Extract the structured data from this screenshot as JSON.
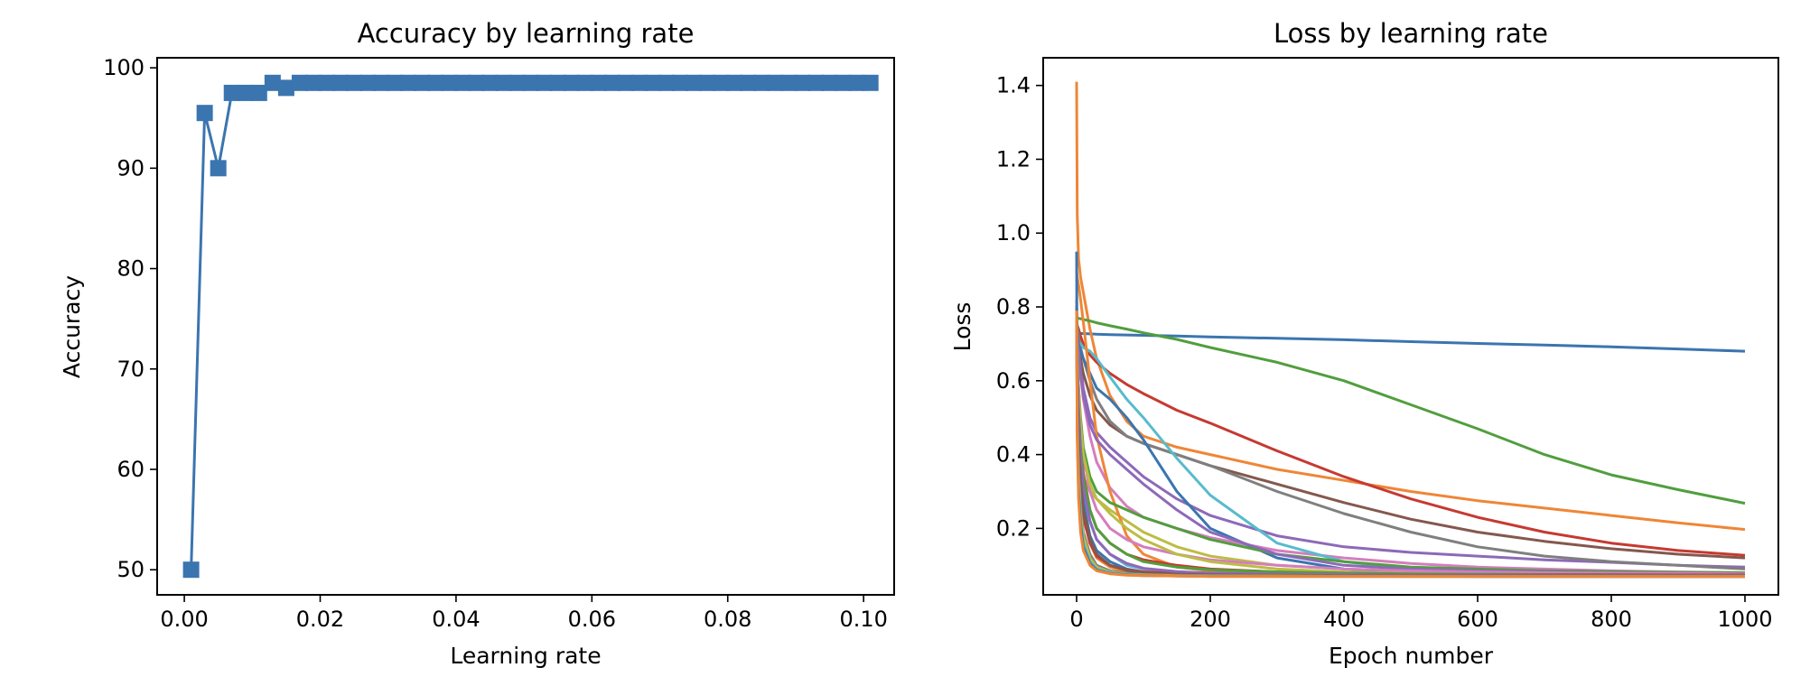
{
  "chart_data": [
    {
      "type": "line",
      "title": "Accuracy by learning rate",
      "xlabel": "Learning rate",
      "ylabel": "Accuracy",
      "xlim": [
        -0.004,
        0.1045
      ],
      "ylim": [
        47.5,
        101.0
      ],
      "xticks": [
        0.0,
        0.02,
        0.04,
        0.06,
        0.08,
        0.1
      ],
      "xticklabels": [
        "0.00",
        "0.02",
        "0.04",
        "0.06",
        "0.08",
        "0.10"
      ],
      "yticks": [
        50,
        60,
        70,
        80,
        90,
        100
      ],
      "yticklabels": [
        "50",
        "60",
        "70",
        "80",
        "90",
        "100"
      ],
      "grid": false,
      "marker": "square",
      "color": "#3b75af",
      "series": [
        {
          "x": [
            0.001,
            0.003,
            0.005,
            0.007,
            0.009,
            0.011,
            0.013,
            0.015,
            0.017,
            0.019,
            0.021,
            0.023,
            0.025,
            0.027,
            0.029,
            0.031,
            0.033,
            0.035,
            0.037,
            0.039,
            0.041,
            0.043,
            0.045,
            0.047,
            0.049,
            0.051,
            0.053,
            0.055,
            0.057,
            0.059,
            0.061,
            0.063,
            0.065,
            0.067,
            0.069,
            0.071,
            0.073,
            0.075,
            0.077,
            0.079,
            0.081,
            0.083,
            0.085,
            0.087,
            0.089,
            0.091,
            0.093,
            0.095,
            0.097,
            0.099,
            0.101
          ],
          "values": [
            50,
            95.5,
            90,
            97.5,
            97.5,
            97.5,
            98.5,
            98,
            98.5,
            98.5,
            98.5,
            98.5,
            98.5,
            98.5,
            98.5,
            98.5,
            98.5,
            98.5,
            98.5,
            98.5,
            98.5,
            98.5,
            98.5,
            98.5,
            98.5,
            98.5,
            98.5,
            98.5,
            98.5,
            98.5,
            98.5,
            98.5,
            98.5,
            98.5,
            98.5,
            98.5,
            98.5,
            98.5,
            98.5,
            98.5,
            98.5,
            98.5,
            98.5,
            98.5,
            98.5,
            98.5,
            98.5,
            98.5,
            98.5,
            98.5,
            98.5
          ]
        }
      ]
    },
    {
      "type": "line",
      "title": "Loss by learning rate",
      "xlabel": "Epoch number",
      "ylabel": "Loss",
      "xlim": [
        -50,
        1050
      ],
      "ylim": [
        0.02,
        1.475
      ],
      "xticks": [
        0,
        200,
        400,
        600,
        800,
        1000
      ],
      "xticklabels": [
        "0",
        "200",
        "400",
        "600",
        "800",
        "1000"
      ],
      "yticks": [
        0.2,
        0.4,
        0.6,
        0.8,
        1.0,
        1.2,
        1.4
      ],
      "yticklabels": [
        "0.2",
        "0.4",
        "0.6",
        "0.8",
        "1.0",
        "1.2",
        "1.4"
      ],
      "grid": false,
      "x": [
        0,
        1,
        3,
        6,
        10,
        20,
        30,
        50,
        75,
        100,
        150,
        200,
        300,
        400,
        500,
        600,
        700,
        800,
        900,
        1000
      ],
      "series": [
        {
          "color": "#3b75af",
          "values": [
            0.73,
            0.73,
            0.729,
            0.728,
            0.728,
            0.727,
            0.726,
            0.725,
            0.724,
            0.723,
            0.721,
            0.719,
            0.715,
            0.711,
            0.706,
            0.701,
            0.697,
            0.692,
            0.686,
            0.68
          ]
        },
        {
          "color": "#ef8636",
          "values": [
            1.41,
            1.05,
            0.93,
            0.88,
            0.84,
            0.74,
            0.66,
            0.56,
            0.49,
            0.45,
            0.42,
            0.4,
            0.36,
            0.33,
            0.3,
            0.275,
            0.255,
            0.235,
            0.215,
            0.197
          ]
        },
        {
          "color": "#519e3e",
          "values": [
            0.77,
            0.77,
            0.769,
            0.768,
            0.766,
            0.762,
            0.757,
            0.749,
            0.74,
            0.73,
            0.712,
            0.69,
            0.65,
            0.6,
            0.535,
            0.47,
            0.4,
            0.345,
            0.305,
            0.268
          ]
        },
        {
          "color": "#c53a32",
          "values": [
            0.76,
            0.75,
            0.74,
            0.72,
            0.7,
            0.67,
            0.65,
            0.62,
            0.59,
            0.565,
            0.52,
            0.485,
            0.41,
            0.34,
            0.28,
            0.23,
            0.19,
            0.16,
            0.14,
            0.127
          ]
        },
        {
          "color": "#8d69b8",
          "values": [
            0.78,
            0.74,
            0.7,
            0.65,
            0.58,
            0.5,
            0.46,
            0.42,
            0.38,
            0.34,
            0.28,
            0.235,
            0.18,
            0.15,
            0.135,
            0.125,
            0.115,
            0.108,
            0.1,
            0.095
          ]
        },
        {
          "color": "#84584e",
          "values": [
            0.72,
            0.71,
            0.69,
            0.66,
            0.62,
            0.56,
            0.52,
            0.48,
            0.45,
            0.43,
            0.4,
            0.37,
            0.32,
            0.27,
            0.225,
            0.19,
            0.165,
            0.145,
            0.13,
            0.12
          ]
        },
        {
          "color": "#d57dbe",
          "values": [
            0.76,
            0.72,
            0.68,
            0.62,
            0.55,
            0.45,
            0.38,
            0.31,
            0.26,
            0.23,
            0.2,
            0.175,
            0.14,
            0.12,
            0.105,
            0.095,
            0.09,
            0.085,
            0.082,
            0.08
          ]
        },
        {
          "color": "#7f7f7f",
          "values": [
            0.78,
            0.75,
            0.72,
            0.69,
            0.66,
            0.6,
            0.55,
            0.49,
            0.45,
            0.43,
            0.4,
            0.37,
            0.3,
            0.24,
            0.19,
            0.15,
            0.125,
            0.11,
            0.1,
            0.09
          ]
        },
        {
          "color": "#bcbc45",
          "values": [
            0.74,
            0.6,
            0.48,
            0.4,
            0.34,
            0.3,
            0.28,
            0.25,
            0.22,
            0.19,
            0.15,
            0.125,
            0.1,
            0.09,
            0.085,
            0.08,
            0.078,
            0.076,
            0.075,
            0.074
          ]
        },
        {
          "color": "#58bbcc",
          "values": [
            0.7,
            0.7,
            0.7,
            0.7,
            0.69,
            0.68,
            0.66,
            0.61,
            0.55,
            0.5,
            0.39,
            0.29,
            0.16,
            0.11,
            0.09,
            0.08,
            0.076,
            0.074,
            0.072,
            0.071
          ]
        },
        {
          "color": "#3b75af",
          "values": [
            0.74,
            0.72,
            0.7,
            0.68,
            0.66,
            0.62,
            0.58,
            0.55,
            0.5,
            0.44,
            0.3,
            0.2,
            0.12,
            0.09,
            0.08,
            0.075,
            0.073,
            0.072,
            0.071,
            0.07
          ]
        },
        {
          "color": "#ef8636",
          "values": [
            0.9,
            0.88,
            0.86,
            0.82,
            0.76,
            0.6,
            0.45,
            0.3,
            0.18,
            0.13,
            0.095,
            0.085,
            0.078,
            0.075,
            0.073,
            0.072,
            0.071,
            0.07,
            0.07,
            0.07
          ]
        },
        {
          "color": "#519e3e",
          "values": [
            0.72,
            0.65,
            0.58,
            0.5,
            0.42,
            0.34,
            0.3,
            0.27,
            0.25,
            0.23,
            0.2,
            0.17,
            0.13,
            0.11,
            0.095,
            0.09,
            0.085,
            0.083,
            0.081,
            0.08
          ]
        },
        {
          "color": "#c53a32",
          "values": [
            0.8,
            0.7,
            0.58,
            0.45,
            0.35,
            0.25,
            0.2,
            0.16,
            0.13,
            0.115,
            0.1,
            0.09,
            0.082,
            0.078,
            0.076,
            0.075,
            0.074,
            0.073,
            0.073,
            0.072
          ]
        },
        {
          "color": "#8d69b8",
          "values": [
            0.75,
            0.72,
            0.68,
            0.62,
            0.56,
            0.48,
            0.44,
            0.4,
            0.36,
            0.32,
            0.25,
            0.19,
            0.13,
            0.1,
            0.09,
            0.085,
            0.082,
            0.08,
            0.078,
            0.077
          ]
        },
        {
          "color": "#d57dbe",
          "values": [
            0.73,
            0.66,
            0.57,
            0.48,
            0.4,
            0.3,
            0.25,
            0.2,
            0.17,
            0.15,
            0.13,
            0.115,
            0.1,
            0.09,
            0.085,
            0.082,
            0.08,
            0.079,
            0.078,
            0.077
          ]
        },
        {
          "color": "#bcbc45",
          "values": [
            0.76,
            0.68,
            0.58,
            0.48,
            0.4,
            0.32,
            0.28,
            0.24,
            0.2,
            0.17,
            0.13,
            0.11,
            0.09,
            0.082,
            0.078,
            0.076,
            0.075,
            0.074,
            0.074,
            0.073
          ]
        },
        {
          "color": "#58bbcc",
          "values": [
            0.72,
            0.6,
            0.48,
            0.38,
            0.3,
            0.22,
            0.17,
            0.13,
            0.1,
            0.09,
            0.08,
            0.076,
            0.073,
            0.072,
            0.071,
            0.07,
            0.07,
            0.07,
            0.07,
            0.07
          ]
        },
        {
          "color": "#3b75af",
          "values": [
            0.78,
            0.62,
            0.48,
            0.36,
            0.27,
            0.18,
            0.14,
            0.11,
            0.09,
            0.082,
            0.076,
            0.074,
            0.072,
            0.071,
            0.071,
            0.07,
            0.07,
            0.07,
            0.07,
            0.07
          ]
        },
        {
          "color": "#ef8636",
          "values": [
            0.82,
            0.62,
            0.44,
            0.32,
            0.24,
            0.16,
            0.12,
            0.095,
            0.082,
            0.077,
            0.074,
            0.072,
            0.071,
            0.071,
            0.07,
            0.07,
            0.07,
            0.07,
            0.07,
            0.07
          ]
        },
        {
          "color": "#519e3e",
          "values": [
            0.74,
            0.64,
            0.52,
            0.42,
            0.34,
            0.25,
            0.2,
            0.16,
            0.13,
            0.11,
            0.095,
            0.088,
            0.082,
            0.079,
            0.077,
            0.076,
            0.075,
            0.075,
            0.074,
            0.074
          ]
        },
        {
          "color": "#c53a32",
          "values": [
            0.76,
            0.56,
            0.4,
            0.3,
            0.23,
            0.16,
            0.125,
            0.1,
            0.088,
            0.082,
            0.078,
            0.076,
            0.075,
            0.075,
            0.074,
            0.074,
            0.074,
            0.074,
            0.074,
            0.074
          ]
        },
        {
          "color": "#8d69b8",
          "values": [
            0.8,
            0.66,
            0.52,
            0.4,
            0.31,
            0.22,
            0.17,
            0.13,
            0.105,
            0.092,
            0.083,
            0.079,
            0.076,
            0.075,
            0.074,
            0.074,
            0.073,
            0.073,
            0.073,
            0.073
          ]
        },
        {
          "color": "#84584e",
          "values": [
            0.73,
            0.58,
            0.44,
            0.33,
            0.25,
            0.17,
            0.13,
            0.1,
            0.086,
            0.08,
            0.076,
            0.074,
            0.073,
            0.072,
            0.072,
            0.072,
            0.072,
            0.072,
            0.072,
            0.072
          ]
        },
        {
          "color": "#7f7f7f",
          "values": [
            0.74,
            0.52,
            0.36,
            0.26,
            0.19,
            0.13,
            0.1,
            0.085,
            0.078,
            0.075,
            0.073,
            0.072,
            0.071,
            0.071,
            0.071,
            0.071,
            0.071,
            0.071,
            0.071,
            0.071
          ]
        },
        {
          "color": "#bcbc45",
          "values": [
            0.76,
            0.5,
            0.34,
            0.24,
            0.18,
            0.12,
            0.095,
            0.082,
            0.076,
            0.074,
            0.072,
            0.071,
            0.071,
            0.07,
            0.07,
            0.07,
            0.07,
            0.07,
            0.07,
            0.07
          ]
        },
        {
          "color": "#58bbcc",
          "values": [
            0.78,
            0.48,
            0.32,
            0.22,
            0.16,
            0.11,
            0.09,
            0.08,
            0.075,
            0.073,
            0.071,
            0.071,
            0.07,
            0.07,
            0.07,
            0.07,
            0.07,
            0.07,
            0.07,
            0.07
          ]
        },
        {
          "color": "#3b75af",
          "values": [
            0.95,
            0.46,
            0.3,
            0.21,
            0.15,
            0.105,
            0.087,
            0.078,
            0.074,
            0.072,
            0.071,
            0.07,
            0.07,
            0.07,
            0.07,
            0.07,
            0.07,
            0.07,
            0.07,
            0.07
          ]
        },
        {
          "color": "#ef8636",
          "values": [
            0.79,
            0.44,
            0.28,
            0.19,
            0.14,
            0.1,
            0.085,
            0.077,
            0.073,
            0.072,
            0.071,
            0.07,
            0.07,
            0.07,
            0.07,
            0.07,
            0.07,
            0.07,
            0.07,
            0.07
          ]
        }
      ]
    }
  ]
}
